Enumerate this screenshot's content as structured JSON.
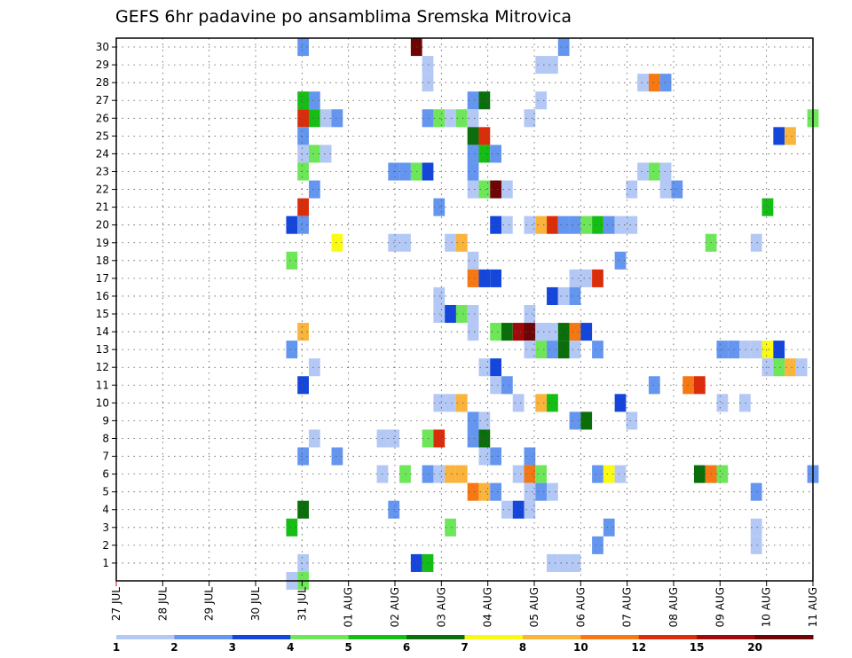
{
  "chart_data": {
    "type": "heatmap",
    "title": "GEFS 6hr padavine po ansamblima Sremska Mitrovica",
    "x_tick_labels": [
      "27 JUL",
      "28 JUL",
      "29 JUL",
      "30 JUL",
      "31 JUL",
      "01 AUG",
      "02 AUG",
      "03 AUG",
      "04 AUG",
      "05 AUG",
      "06 AUG",
      "07 AUG",
      "08 AUG",
      "09 AUG",
      "10 AUG",
      "11 AUG"
    ],
    "y_range": [
      0,
      30
    ],
    "y_ticks": [
      1,
      2,
      3,
      4,
      5,
      6,
      7,
      8,
      9,
      10,
      11,
      12,
      13,
      14,
      15,
      16,
      17,
      18,
      19,
      20,
      21,
      22,
      23,
      24,
      25,
      26,
      27,
      28,
      29,
      30
    ],
    "grid": true,
    "colorbar": {
      "labels": [
        "1",
        "2",
        "3",
        "4",
        "5",
        "6",
        "7",
        "8",
        "10",
        "12",
        "15",
        "20"
      ],
      "colors": [
        "#b4c8f5",
        "#6496f0",
        "#1446dc",
        "#6ee65a",
        "#14be14",
        "#0a6e0a",
        "#fafa14",
        "#fab43c",
        "#f57814",
        "#dc2d0a",
        "#a00a0a",
        "#6e0505"
      ]
    },
    "cells": [
      {
        "col": 16,
        "row": 30,
        "v": 2
      },
      {
        "col": 26,
        "row": 30,
        "v": 20
      },
      {
        "col": 39,
        "row": 30,
        "v": 2
      },
      {
        "col": 27,
        "row": 29,
        "v": 1
      },
      {
        "col": 37,
        "row": 29,
        "v": 1
      },
      {
        "col": 38,
        "row": 29,
        "v": 1
      },
      {
        "col": 27,
        "row": 28,
        "v": 1
      },
      {
        "col": 46,
        "row": 28,
        "v": 1
      },
      {
        "col": 47,
        "row": 28,
        "v": 10
      },
      {
        "col": 48,
        "row": 28,
        "v": 2
      },
      {
        "col": 16,
        "row": 27,
        "v": 5
      },
      {
        "col": 17,
        "row": 27,
        "v": 2
      },
      {
        "col": 31,
        "row": 27,
        "v": 2
      },
      {
        "col": 32,
        "row": 27,
        "v": 6
      },
      {
        "col": 37,
        "row": 27,
        "v": 1
      },
      {
        "col": 16,
        "row": 26,
        "v": 12
      },
      {
        "col": 17,
        "row": 26,
        "v": 5
      },
      {
        "col": 18,
        "row": 26,
        "v": 1
      },
      {
        "col": 19,
        "row": 26,
        "v": 2
      },
      {
        "col": 27,
        "row": 26,
        "v": 2
      },
      {
        "col": 28,
        "row": 26,
        "v": 4
      },
      {
        "col": 29,
        "row": 26,
        "v": 1
      },
      {
        "col": 30,
        "row": 26,
        "v": 4
      },
      {
        "col": 31,
        "row": 26,
        "v": 1
      },
      {
        "col": 36,
        "row": 26,
        "v": 1
      },
      {
        "col": 61,
        "row": 26,
        "v": 4
      },
      {
        "col": 16,
        "row": 25,
        "v": 2
      },
      {
        "col": 31,
        "row": 25,
        "v": 6
      },
      {
        "col": 32,
        "row": 25,
        "v": 12
      },
      {
        "col": 58,
        "row": 25,
        "v": 3
      },
      {
        "col": 59,
        "row": 25,
        "v": 8
      },
      {
        "col": 16,
        "row": 24,
        "v": 1
      },
      {
        "col": 17,
        "row": 24,
        "v": 4
      },
      {
        "col": 18,
        "row": 24,
        "v": 1
      },
      {
        "col": 31,
        "row": 24,
        "v": 2
      },
      {
        "col": 32,
        "row": 24,
        "v": 5
      },
      {
        "col": 33,
        "row": 24,
        "v": 2
      },
      {
        "col": 16,
        "row": 23,
        "v": 4
      },
      {
        "col": 24,
        "row": 23,
        "v": 2
      },
      {
        "col": 25,
        "row": 23,
        "v": 2
      },
      {
        "col": 26,
        "row": 23,
        "v": 4
      },
      {
        "col": 27,
        "row": 23,
        "v": 3
      },
      {
        "col": 31,
        "row": 23,
        "v": 2
      },
      {
        "col": 46,
        "row": 23,
        "v": 1
      },
      {
        "col": 47,
        "row": 23,
        "v": 4
      },
      {
        "col": 48,
        "row": 23,
        "v": 1
      },
      {
        "col": 17,
        "row": 22,
        "v": 2
      },
      {
        "col": 31,
        "row": 22,
        "v": 1
      },
      {
        "col": 32,
        "row": 22,
        "v": 4
      },
      {
        "col": 33,
        "row": 22,
        "v": 20
      },
      {
        "col": 34,
        "row": 22,
        "v": 1
      },
      {
        "col": 45,
        "row": 22,
        "v": 1
      },
      {
        "col": 48,
        "row": 22,
        "v": 1
      },
      {
        "col": 49,
        "row": 22,
        "v": 2
      },
      {
        "col": 16,
        "row": 21,
        "v": 12
      },
      {
        "col": 28,
        "row": 21,
        "v": 2
      },
      {
        "col": 57,
        "row": 21,
        "v": 5
      },
      {
        "col": 15,
        "row": 20,
        "v": 3
      },
      {
        "col": 16,
        "row": 20,
        "v": 2
      },
      {
        "col": 33,
        "row": 20,
        "v": 3
      },
      {
        "col": 34,
        "row": 20,
        "v": 1
      },
      {
        "col": 36,
        "row": 20,
        "v": 1
      },
      {
        "col": 37,
        "row": 20,
        "v": 8
      },
      {
        "col": 38,
        "row": 20,
        "v": 12
      },
      {
        "col": 39,
        "row": 20,
        "v": 2
      },
      {
        "col": 40,
        "row": 20,
        "v": 2
      },
      {
        "col": 41,
        "row": 20,
        "v": 4
      },
      {
        "col": 42,
        "row": 20,
        "v": 5
      },
      {
        "col": 43,
        "row": 20,
        "v": 2
      },
      {
        "col": 44,
        "row": 20,
        "v": 1
      },
      {
        "col": 45,
        "row": 20,
        "v": 1
      },
      {
        "col": 19,
        "row": 19,
        "v": 7
      },
      {
        "col": 24,
        "row": 19,
        "v": 1
      },
      {
        "col": 25,
        "row": 19,
        "v": 1
      },
      {
        "col": 29,
        "row": 19,
        "v": 1
      },
      {
        "col": 30,
        "row": 19,
        "v": 8
      },
      {
        "col": 52,
        "row": 19,
        "v": 4
      },
      {
        "col": 56,
        "row": 19,
        "v": 1
      },
      {
        "col": 15,
        "row": 18,
        "v": 4
      },
      {
        "col": 31,
        "row": 18,
        "v": 1
      },
      {
        "col": 44,
        "row": 18,
        "v": 2
      },
      {
        "col": 31,
        "row": 17,
        "v": 10
      },
      {
        "col": 32,
        "row": 17,
        "v": 3
      },
      {
        "col": 33,
        "row": 17,
        "v": 3
      },
      {
        "col": 40,
        "row": 17,
        "v": 1
      },
      {
        "col": 41,
        "row": 17,
        "v": 1
      },
      {
        "col": 42,
        "row": 17,
        "v": 12
      },
      {
        "col": 28,
        "row": 16,
        "v": 1
      },
      {
        "col": 38,
        "row": 16,
        "v": 3
      },
      {
        "col": 39,
        "row": 16,
        "v": 1
      },
      {
        "col": 40,
        "row": 16,
        "v": 2
      },
      {
        "col": 28,
        "row": 15,
        "v": 1
      },
      {
        "col": 29,
        "row": 15,
        "v": 3
      },
      {
        "col": 30,
        "row": 15,
        "v": 4
      },
      {
        "col": 31,
        "row": 15,
        "v": 1
      },
      {
        "col": 36,
        "row": 15,
        "v": 1
      },
      {
        "col": 16,
        "row": 14,
        "v": 8
      },
      {
        "col": 31,
        "row": 14,
        "v": 1
      },
      {
        "col": 33,
        "row": 14,
        "v": 4
      },
      {
        "col": 34,
        "row": 14,
        "v": 6
      },
      {
        "col": 35,
        "row": 14,
        "v": 15
      },
      {
        "col": 36,
        "row": 14,
        "v": 20
      },
      {
        "col": 37,
        "row": 14,
        "v": 1
      },
      {
        "col": 38,
        "row": 14,
        "v": 1
      },
      {
        "col": 39,
        "row": 14,
        "v": 6
      },
      {
        "col": 40,
        "row": 14,
        "v": 10
      },
      {
        "col": 41,
        "row": 14,
        "v": 3
      },
      {
        "col": 15,
        "row": 13,
        "v": 2
      },
      {
        "col": 36,
        "row": 13,
        "v": 1
      },
      {
        "col": 37,
        "row": 13,
        "v": 4
      },
      {
        "col": 38,
        "row": 13,
        "v": 2
      },
      {
        "col": 39,
        "row": 13,
        "v": 6
      },
      {
        "col": 40,
        "row": 13,
        "v": 1
      },
      {
        "col": 42,
        "row": 13,
        "v": 2
      },
      {
        "col": 53,
        "row": 13,
        "v": 2
      },
      {
        "col": 54,
        "row": 13,
        "v": 2
      },
      {
        "col": 55,
        "row": 13,
        "v": 1
      },
      {
        "col": 56,
        "row": 13,
        "v": 1
      },
      {
        "col": 57,
        "row": 13,
        "v": 7
      },
      {
        "col": 58,
        "row": 13,
        "v": 3
      },
      {
        "col": 17,
        "row": 12,
        "v": 1
      },
      {
        "col": 32,
        "row": 12,
        "v": 1
      },
      {
        "col": 33,
        "row": 12,
        "v": 3
      },
      {
        "col": 57,
        "row": 12,
        "v": 1
      },
      {
        "col": 58,
        "row": 12,
        "v": 4
      },
      {
        "col": 59,
        "row": 12,
        "v": 8
      },
      {
        "col": 60,
        "row": 12,
        "v": 1
      },
      {
        "col": 16,
        "row": 11,
        "v": 3
      },
      {
        "col": 33,
        "row": 11,
        "v": 1
      },
      {
        "col": 34,
        "row": 11,
        "v": 2
      },
      {
        "col": 47,
        "row": 11,
        "v": 2
      },
      {
        "col": 50,
        "row": 11,
        "v": 10
      },
      {
        "col": 51,
        "row": 11,
        "v": 12
      },
      {
        "col": 28,
        "row": 10,
        "v": 1
      },
      {
        "col": 29,
        "row": 10,
        "v": 1
      },
      {
        "col": 30,
        "row": 10,
        "v": 8
      },
      {
        "col": 35,
        "row": 10,
        "v": 1
      },
      {
        "col": 37,
        "row": 10,
        "v": 8
      },
      {
        "col": 38,
        "row": 10,
        "v": 5
      },
      {
        "col": 44,
        "row": 10,
        "v": 3
      },
      {
        "col": 53,
        "row": 10,
        "v": 1
      },
      {
        "col": 55,
        "row": 10,
        "v": 1
      },
      {
        "col": 31,
        "row": 9,
        "v": 2
      },
      {
        "col": 32,
        "row": 9,
        "v": 1
      },
      {
        "col": 40,
        "row": 9,
        "v": 2
      },
      {
        "col": 41,
        "row": 9,
        "v": 6
      },
      {
        "col": 45,
        "row": 9,
        "v": 1
      },
      {
        "col": 17,
        "row": 8,
        "v": 1
      },
      {
        "col": 23,
        "row": 8,
        "v": 1
      },
      {
        "col": 24,
        "row": 8,
        "v": 1
      },
      {
        "col": 27,
        "row": 8,
        "v": 4
      },
      {
        "col": 28,
        "row": 8,
        "v": 12
      },
      {
        "col": 31,
        "row": 8,
        "v": 2
      },
      {
        "col": 32,
        "row": 8,
        "v": 6
      },
      {
        "col": 16,
        "row": 7,
        "v": 2
      },
      {
        "col": 19,
        "row": 7,
        "v": 2
      },
      {
        "col": 32,
        "row": 7,
        "v": 1
      },
      {
        "col": 33,
        "row": 7,
        "v": 2
      },
      {
        "col": 36,
        "row": 7,
        "v": 2
      },
      {
        "col": 23,
        "row": 6,
        "v": 1
      },
      {
        "col": 25,
        "row": 6,
        "v": 4
      },
      {
        "col": 27,
        "row": 6,
        "v": 2
      },
      {
        "col": 28,
        "row": 6,
        "v": 1
      },
      {
        "col": 29,
        "row": 6,
        "v": 8
      },
      {
        "col": 30,
        "row": 6,
        "v": 8
      },
      {
        "col": 35,
        "row": 6,
        "v": 1
      },
      {
        "col": 36,
        "row": 6,
        "v": 10
      },
      {
        "col": 37,
        "row": 6,
        "v": 4
      },
      {
        "col": 42,
        "row": 6,
        "v": 2
      },
      {
        "col": 43,
        "row": 6,
        "v": 7
      },
      {
        "col": 44,
        "row": 6,
        "v": 1
      },
      {
        "col": 51,
        "row": 6,
        "v": 6
      },
      {
        "col": 52,
        "row": 6,
        "v": 10
      },
      {
        "col": 53,
        "row": 6,
        "v": 4
      },
      {
        "col": 61,
        "row": 6,
        "v": 2
      },
      {
        "col": 31,
        "row": 5,
        "v": 10
      },
      {
        "col": 32,
        "row": 5,
        "v": 8
      },
      {
        "col": 33,
        "row": 5,
        "v": 2
      },
      {
        "col": 36,
        "row": 5,
        "v": 1
      },
      {
        "col": 37,
        "row": 5,
        "v": 2
      },
      {
        "col": 38,
        "row": 5,
        "v": 1
      },
      {
        "col": 56,
        "row": 5,
        "v": 2
      },
      {
        "col": 16,
        "row": 4,
        "v": 6
      },
      {
        "col": 24,
        "row": 4,
        "v": 2
      },
      {
        "col": 34,
        "row": 4,
        "v": 1
      },
      {
        "col": 35,
        "row": 4,
        "v": 3
      },
      {
        "col": 36,
        "row": 4,
        "v": 1
      },
      {
        "col": 15,
        "row": 3,
        "v": 5
      },
      {
        "col": 29,
        "row": 3,
        "v": 4
      },
      {
        "col": 43,
        "row": 3,
        "v": 2
      },
      {
        "col": 56,
        "row": 3,
        "v": 1
      },
      {
        "col": 42,
        "row": 2,
        "v": 2
      },
      {
        "col": 56,
        "row": 2,
        "v": 1
      },
      {
        "col": 16,
        "row": 1,
        "v": 1
      },
      {
        "col": 26,
        "row": 1,
        "v": 3
      },
      {
        "col": 27,
        "row": 1,
        "v": 5
      },
      {
        "col": 38,
        "row": 1,
        "v": 1
      },
      {
        "col": 39,
        "row": 1,
        "v": 1
      },
      {
        "col": 40,
        "row": 1,
        "v": 1
      },
      {
        "col": 15,
        "row": 0,
        "v": 1
      },
      {
        "col": 16,
        "row": 0,
        "v": 4
      }
    ]
  }
}
